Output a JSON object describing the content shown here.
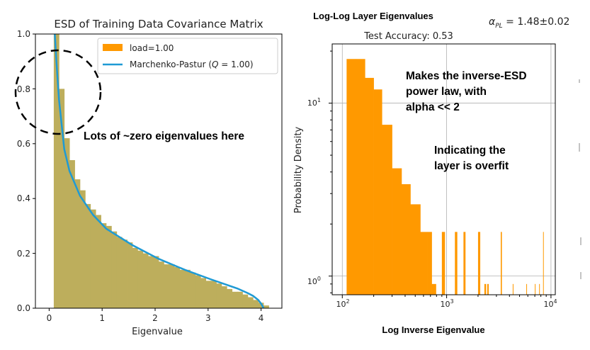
{
  "chart_data": [
    {
      "type": "area",
      "title": "ESD of Training Data Covariance Matrix",
      "xlabel": "Eigenvalue",
      "ylabel": "",
      "xlim": [
        -0.35,
        4.35
      ],
      "ylim": [
        0,
        1.0
      ],
      "x_ticks": [
        "0",
        "1",
        "2",
        "3",
        "4"
      ],
      "y_ticks": [
        "0.0",
        "0.2",
        "0.4",
        "0.6",
        "0.8",
        "1.0"
      ],
      "grid": false,
      "legend_position": "top-right",
      "series": [
        {
          "name": "load=1.00",
          "type": "histogram",
          "color": "#FF9900",
          "x": [
            0.05,
            0.15,
            0.25,
            0.35,
            0.45,
            0.55,
            0.65,
            0.75,
            0.85,
            0.95,
            1.05,
            1.15,
            1.25,
            1.35,
            1.45,
            1.55,
            1.65,
            1.75,
            1.85,
            1.95,
            2.05,
            2.15,
            2.25,
            2.35,
            2.45,
            2.55,
            2.65,
            2.75,
            2.85,
            2.95,
            3.05,
            3.15,
            3.25,
            3.35,
            3.45,
            3.55,
            3.65,
            3.75,
            3.85,
            3.95,
            4.05
          ],
          "y": [
            1.0,
            0.8,
            0.62,
            0.54,
            0.47,
            0.43,
            0.38,
            0.36,
            0.34,
            0.31,
            0.3,
            0.28,
            0.26,
            0.25,
            0.24,
            0.22,
            0.21,
            0.2,
            0.19,
            0.19,
            0.17,
            0.16,
            0.16,
            0.15,
            0.14,
            0.14,
            0.13,
            0.12,
            0.11,
            0.1,
            0.1,
            0.09,
            0.08,
            0.07,
            0.06,
            0.06,
            0.05,
            0.04,
            0.03,
            0.02,
            0.01
          ]
        },
        {
          "name": "Marchenko-Pastur (Q = 1.00)",
          "type": "line",
          "color": "#1f9ad4",
          "x": [
            0.02,
            0.05,
            0.1,
            0.2,
            0.3,
            0.5,
            0.75,
            1.0,
            1.5,
            2.0,
            2.5,
            3.0,
            3.3,
            3.5,
            3.7,
            3.8,
            3.9,
            3.96,
            4.0
          ],
          "y": [
            1.0,
            0.9,
            0.76,
            0.58,
            0.5,
            0.41,
            0.34,
            0.29,
            0.23,
            0.18,
            0.14,
            0.105,
            0.085,
            0.072,
            0.055,
            0.045,
            0.03,
            0.015,
            0.0
          ]
        }
      ],
      "annotations": [
        "Lots of ~zero eigenvalues here"
      ]
    },
    {
      "type": "bar",
      "title": "Log-Log Layer Eigenvalues",
      "subtitle": "Test Accuracy: 0.53",
      "xlabel": "Log Inverse Eigenvalue",
      "ylabel": "Probability Density",
      "x_scale": "log",
      "y_scale": "log",
      "xlim": [
        80,
        11000
      ],
      "ylim": [
        0.78,
        22
      ],
      "x_ticks": [
        "10^2",
        "10^3",
        "10^4"
      ],
      "y_ticks": [
        "10^0",
        "10^1"
      ],
      "x_gridlines": [
        100,
        1000,
        10000
      ],
      "y_gridlines": [
        1,
        10
      ],
      "series": [
        {
          "name": "",
          "color": "#FF9900",
          "bins": [
            {
              "x0": 110,
              "x1": 135,
              "y": 18
            },
            {
              "x0": 135,
              "x1": 165,
              "y": 18
            },
            {
              "x0": 165,
              "x1": 200,
              "y": 14
            },
            {
              "x0": 200,
              "x1": 240,
              "y": 12
            },
            {
              "x0": 240,
              "x1": 300,
              "y": 7.5
            },
            {
              "x0": 300,
              "x1": 370,
              "y": 4.2
            },
            {
              "x0": 370,
              "x1": 450,
              "y": 3.4
            },
            {
              "x0": 450,
              "x1": 560,
              "y": 2.6
            },
            {
              "x0": 560,
              "x1": 650,
              "y": 1.8
            },
            {
              "x0": 650,
              "x1": 720,
              "y": 1.8
            },
            {
              "x0": 720,
              "x1": 790,
              "y": 0.9
            },
            {
              "x0": 900,
              "x1": 960,
              "y": 1.8
            },
            {
              "x0": 1200,
              "x1": 1260,
              "y": 1.8
            },
            {
              "x0": 1450,
              "x1": 1510,
              "y": 1.8
            },
            {
              "x0": 2000,
              "x1": 2090,
              "y": 1.8
            },
            {
              "x0": 2300,
              "x1": 2380,
              "y": 0.9
            },
            {
              "x0": 2450,
              "x1": 2520,
              "y": 0.9
            },
            {
              "x0": 3300,
              "x1": 3370,
              "y": 1.8
            },
            {
              "x0": 4300,
              "x1": 4350,
              "y": 0.9
            },
            {
              "x0": 5800,
              "x1": 5860,
              "y": 0.9
            },
            {
              "x0": 7000,
              "x1": 7060,
              "y": 0.9
            },
            {
              "x0": 7700,
              "x1": 7760,
              "y": 0.9
            },
            {
              "x0": 8400,
              "x1": 8470,
              "y": 1.8
            }
          ]
        }
      ],
      "annotations": [
        "Makes the inverse-ESD power law, with alpha << 2",
        "Indicating the layer is overfit"
      ],
      "alpha_label": "α_PL = 1.48±0.02"
    }
  ],
  "text": {
    "left_title": "ESD of Training Data Covariance Matrix",
    "left_xlabel": "Eigenvalue",
    "legend_hist": "load=1.00",
    "legend_line_pre": "Marchenko-Pastur (",
    "legend_line_q": "Q",
    "legend_line_post": " = 1.00)",
    "callout": "Lots of ~zero eigenvalues here",
    "right_title": "Log-Log Layer Eigenvalues",
    "alpha_symbol": "α",
    "alpha_sub": "PL",
    "alpha_value": " = 1.48±0.02",
    "accuracy": "Test Accuracy: 0.53",
    "annot1_l1": "Makes the inverse-ESD",
    "annot1_l2": "power law, with",
    "annot1_l3": "alpha << 2",
    "annot2_l1": "Indicating the",
    "annot2_l2": "layer is overfit",
    "right_ylabel": "Probability Density",
    "right_xlabel": "Log Inverse Eigenvalue",
    "lt": [
      "0.0",
      "0.2",
      "0.4",
      "0.6",
      "0.8",
      "1.0"
    ],
    "lx": [
      "0",
      "1",
      "2",
      "3",
      "4"
    ],
    "rx_base": "10",
    "rx_exp": [
      "2",
      "3",
      "4"
    ],
    "ry_base": "10",
    "ry_exp": [
      "0",
      "1"
    ]
  },
  "colors": {
    "hist": "#FF9900",
    "hist_overlap": "#BDAE5C",
    "mp_line": "#1f9ad4",
    "hist_light": "#9FD4D9"
  }
}
